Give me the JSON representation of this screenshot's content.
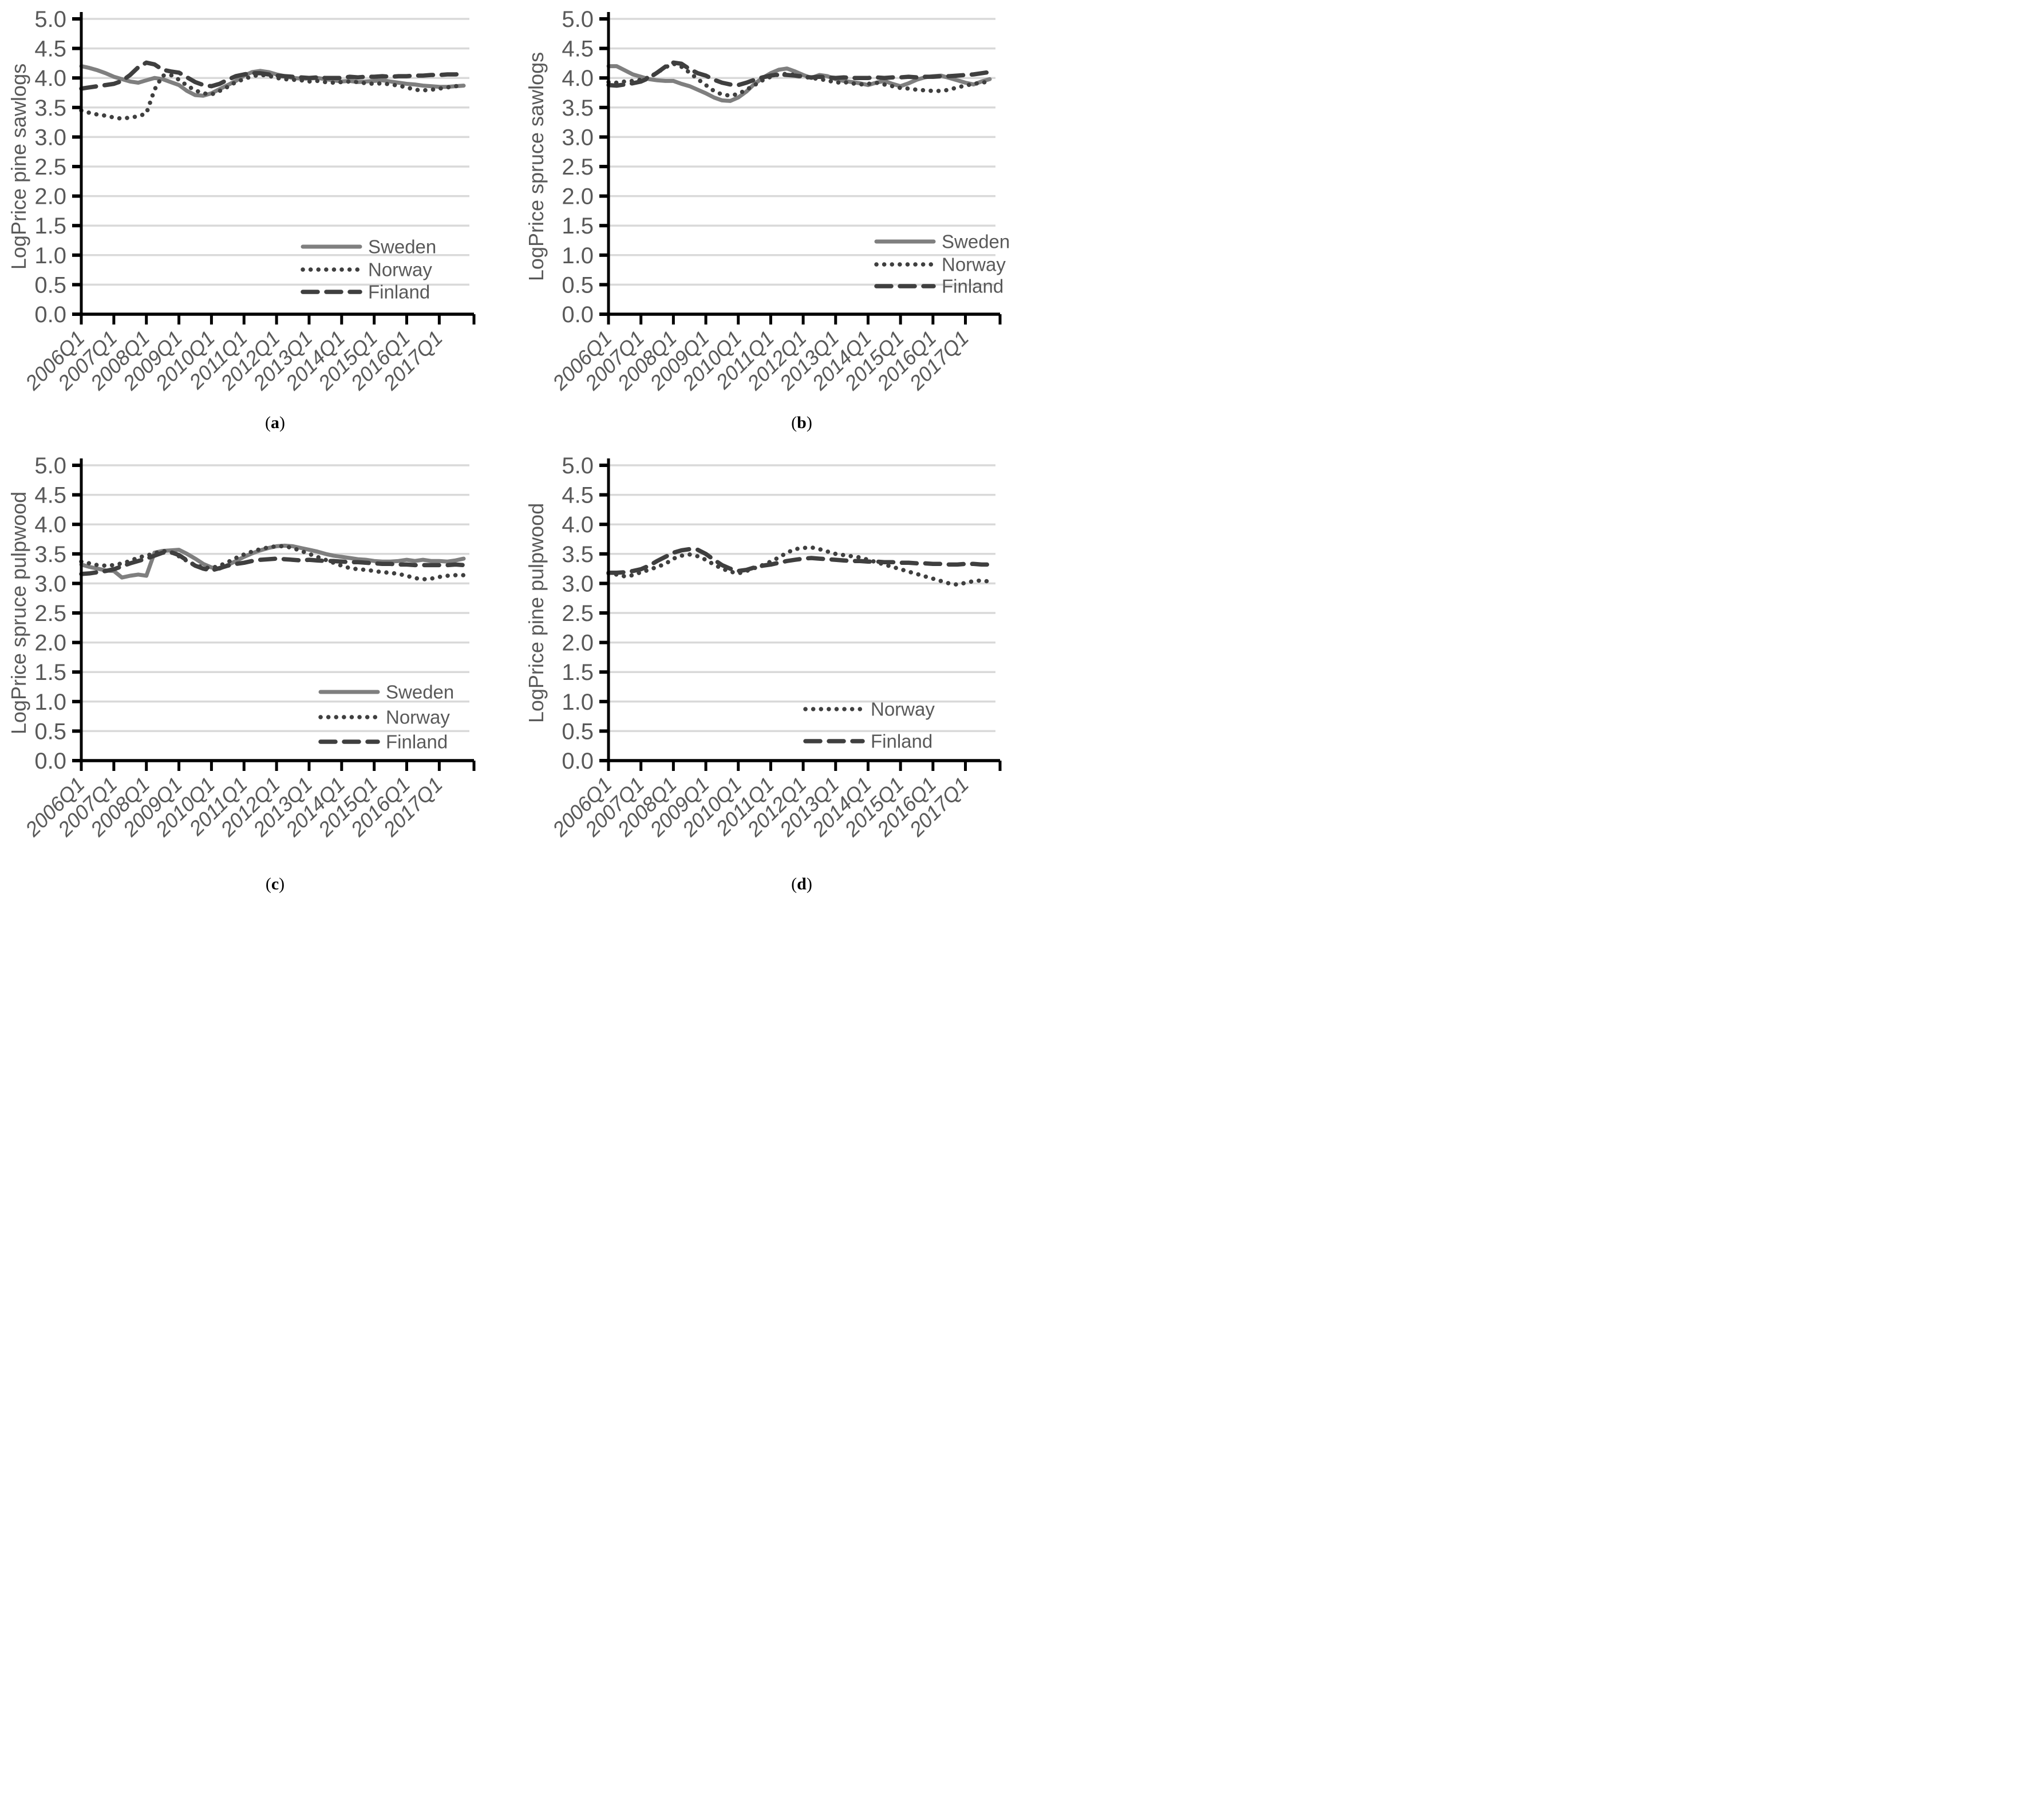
{
  "figure": {
    "captions": [
      {
        "prefix": "(",
        "letter": "a",
        "suffix": ")"
      },
      {
        "prefix": "(",
        "letter": "b",
        "suffix": ")"
      },
      {
        "prefix": "(",
        "letter": "c",
        "suffix": ")"
      },
      {
        "prefix": "(",
        "letter": "d",
        "suffix": ")"
      }
    ]
  },
  "styles": {
    "axis_color": "#000000",
    "grid_color": "#d9d9d9",
    "tick_label_color": "#595959",
    "axis_title_color": "#595959",
    "legend_text_color": "#595959",
    "sweden_color": "#7f7f7f",
    "norway_color": "#3f3f3f",
    "finland_color": "#3f3f3f"
  },
  "chart_data": [
    {
      "panel": "a",
      "type": "line",
      "ylabel": "LogPrice pine sawlogs",
      "caption": "(a)",
      "ylim": [
        0.0,
        5.0
      ],
      "ytick_step": 0.5,
      "ytick_labels": [
        "0.0",
        "0.5",
        "1.0",
        "1.5",
        "2.0",
        "2.5",
        "3.0",
        "3.5",
        "4.0",
        "4.5",
        "5.0"
      ],
      "x_tick_labels": [
        "2006Q1",
        "2007Q1",
        "2008Q1",
        "2009Q1",
        "2010Q1",
        "2011Q1",
        "2012Q1",
        "2013Q1",
        "2014Q1",
        "2015Q1",
        "2016Q1",
        "2017Q1"
      ],
      "x_frequency": "quarterly",
      "x_span": "2006Q1-2017Q4",
      "grid": "horizontal",
      "legend": {
        "position": "inside-lower-right",
        "entries": [
          "Sweden",
          "Norway",
          "Finland"
        ]
      },
      "series": [
        {
          "name": "Sweden",
          "line_style": "solid",
          "color": "#7f7f7f",
          "values": [
            4.2,
            4.17,
            4.13,
            4.08,
            4.02,
            3.98,
            3.94,
            3.92,
            3.96,
            4.0,
            3.98,
            3.93,
            3.88,
            3.78,
            3.71,
            3.7,
            3.74,
            3.81,
            3.88,
            3.95,
            4.04,
            4.1,
            4.12,
            4.1,
            4.06,
            4.03,
            4.0,
            3.99,
            3.99,
            4.0,
            3.98,
            3.96,
            3.94,
            3.95,
            3.93,
            3.94,
            3.95,
            3.96,
            3.94,
            3.92,
            3.9,
            3.89,
            3.87,
            3.86,
            3.85,
            3.85,
            3.86,
            3.87
          ]
        },
        {
          "name": "Norway",
          "line_style": "dotted",
          "color": "#3f3f3f",
          "values": [
            3.45,
            3.41,
            3.38,
            3.36,
            3.33,
            3.31,
            3.33,
            3.35,
            3.4,
            3.8,
            4.04,
            4.05,
            3.97,
            3.87,
            3.79,
            3.74,
            3.72,
            3.78,
            3.85,
            3.93,
            3.98,
            4.03,
            4.05,
            4.04,
            4.0,
            3.98,
            3.97,
            3.96,
            3.94,
            3.95,
            3.93,
            3.92,
            3.93,
            3.94,
            3.93,
            3.91,
            3.9,
            3.91,
            3.89,
            3.87,
            3.84,
            3.8,
            3.79,
            3.8,
            3.82,
            3.84,
            3.86,
            3.87
          ]
        },
        {
          "name": "Finland",
          "line_style": "dashed",
          "color": "#3f3f3f",
          "values": [
            3.82,
            3.84,
            3.86,
            3.88,
            3.9,
            3.95,
            4.05,
            4.18,
            4.26,
            4.23,
            4.14,
            4.11,
            4.09,
            4.01,
            3.93,
            3.88,
            3.86,
            3.9,
            3.97,
            4.03,
            4.06,
            4.08,
            4.08,
            4.06,
            4.04,
            4.03,
            4.02,
            4.01,
            4.0,
            4.01,
            4.0,
            4.0,
            4.0,
            4.02,
            4.01,
            4.02,
            4.02,
            4.03,
            4.02,
            4.03,
            4.03,
            4.04,
            4.04,
            4.05,
            4.05,
            4.06,
            4.06,
            4.07
          ]
        }
      ]
    },
    {
      "panel": "b",
      "type": "line",
      "ylabel": "LogPrice spruce sawlogs",
      "caption": "(b)",
      "ylim": [
        0.0,
        5.0
      ],
      "ytick_step": 0.5,
      "ytick_labels": [
        "0.0",
        "0.5",
        "1.0",
        "1.5",
        "2.0",
        "2.5",
        "3.0",
        "3.5",
        "4.0",
        "4.5",
        "5.0"
      ],
      "x_tick_labels": [
        "2006Q1",
        "2007Q1",
        "2008Q1",
        "2009Q1",
        "2010Q1",
        "2011Q1",
        "2012Q1",
        "2013Q1",
        "2014Q1",
        "2015Q1",
        "2016Q1",
        "2017Q1"
      ],
      "x_frequency": "quarterly",
      "x_span": "2006Q1-2017Q4",
      "grid": "horizontal",
      "legend": {
        "position": "inside-lower-right",
        "entries": [
          "Sweden",
          "Norway",
          "Finland"
        ]
      },
      "series": [
        {
          "name": "Sweden",
          "line_style": "solid",
          "color": "#7f7f7f",
          "values": [
            4.2,
            4.2,
            4.13,
            4.06,
            4.02,
            3.98,
            3.96,
            3.95,
            3.95,
            3.9,
            3.86,
            3.8,
            3.74,
            3.67,
            3.62,
            3.61,
            3.67,
            3.77,
            3.9,
            4.0,
            4.08,
            4.14,
            4.16,
            4.11,
            4.05,
            4.0,
            4.05,
            4.03,
            3.98,
            3.95,
            3.93,
            3.91,
            3.88,
            3.92,
            3.95,
            3.9,
            3.86,
            3.91,
            3.97,
            4.01,
            4.03,
            4.04,
            4.0,
            3.96,
            3.92,
            3.89,
            3.94,
            3.98
          ]
        },
        {
          "name": "Norway",
          "line_style": "dotted",
          "color": "#3f3f3f",
          "values": [
            3.93,
            3.92,
            3.94,
            3.95,
            3.97,
            4.01,
            4.09,
            4.18,
            4.24,
            4.19,
            4.09,
            3.98,
            3.88,
            3.78,
            3.72,
            3.7,
            3.73,
            3.8,
            3.88,
            3.96,
            4.02,
            4.06,
            4.07,
            4.05,
            4.02,
            4.0,
            3.98,
            3.96,
            3.92,
            3.93,
            3.91,
            3.89,
            3.9,
            3.92,
            3.89,
            3.86,
            3.83,
            3.82,
            3.8,
            3.79,
            3.78,
            3.78,
            3.8,
            3.84,
            3.87,
            3.9,
            3.92,
            3.94
          ]
        },
        {
          "name": "Finland",
          "line_style": "dashed",
          "color": "#3f3f3f",
          "values": [
            3.88,
            3.87,
            3.89,
            3.91,
            3.94,
            4.0,
            4.09,
            4.19,
            4.26,
            4.24,
            4.15,
            4.08,
            4.04,
            3.97,
            3.92,
            3.89,
            3.88,
            3.92,
            3.97,
            4.01,
            4.04,
            4.06,
            4.05,
            4.04,
            4.02,
            4.01,
            4.02,
            4.01,
            4.0,
            4.01,
            4.0,
            4.0,
            4.0,
            4.01,
            4.0,
            4.01,
            4.01,
            4.02,
            4.01,
            4.02,
            4.02,
            4.03,
            4.03,
            4.04,
            4.05,
            4.06,
            4.08,
            4.1
          ]
        }
      ]
    },
    {
      "panel": "c",
      "type": "line",
      "ylabel": "LogPrice spruce pulpwood",
      "caption": "(c)",
      "ylim": [
        0.0,
        5.0
      ],
      "ytick_step": 0.5,
      "ytick_labels": [
        "0.0",
        "0.5",
        "1.0",
        "1.5",
        "2.0",
        "2.5",
        "3.0",
        "3.5",
        "4.0",
        "4.5",
        "5.0"
      ],
      "x_tick_labels": [
        "2006Q1",
        "2007Q1",
        "2008Q1",
        "2009Q1",
        "2010Q1",
        "2011Q1",
        "2012Q1",
        "2013Q1",
        "2014Q1",
        "2015Q1",
        "2016Q1",
        "2017Q1"
      ],
      "x_frequency": "quarterly",
      "x_span": "2006Q1-2017Q4",
      "grid": "horizontal",
      "legend": {
        "position": "inside-lower-right",
        "entries": [
          "Sweden",
          "Norway",
          "Finland"
        ]
      },
      "series": [
        {
          "name": "Sweden",
          "line_style": "solid",
          "color": "#7f7f7f",
          "values": [
            3.32,
            3.28,
            3.25,
            3.22,
            3.21,
            3.1,
            3.13,
            3.15,
            3.13,
            3.52,
            3.55,
            3.56,
            3.57,
            3.5,
            3.42,
            3.33,
            3.27,
            3.25,
            3.31,
            3.38,
            3.45,
            3.51,
            3.56,
            3.6,
            3.63,
            3.64,
            3.63,
            3.6,
            3.57,
            3.54,
            3.5,
            3.47,
            3.45,
            3.43,
            3.41,
            3.4,
            3.38,
            3.37,
            3.37,
            3.38,
            3.4,
            3.38,
            3.4,
            3.38,
            3.38,
            3.37,
            3.39,
            3.42
          ]
        },
        {
          "name": "Norway",
          "line_style": "dotted",
          "color": "#3f3f3f",
          "values": [
            3.37,
            3.34,
            3.31,
            3.3,
            3.31,
            3.34,
            3.38,
            3.44,
            3.47,
            3.51,
            3.55,
            3.53,
            3.46,
            3.38,
            3.31,
            3.27,
            3.26,
            3.3,
            3.36,
            3.43,
            3.49,
            3.54,
            3.58,
            3.61,
            3.63,
            3.63,
            3.6,
            3.55,
            3.5,
            3.45,
            3.4,
            3.35,
            3.3,
            3.26,
            3.24,
            3.23,
            3.21,
            3.19,
            3.18,
            3.16,
            3.13,
            3.09,
            3.07,
            3.08,
            3.11,
            3.13,
            3.14,
            3.14
          ]
        },
        {
          "name": "Finland",
          "line_style": "dashed",
          "color": "#3f3f3f",
          "values": [
            3.16,
            3.17,
            3.19,
            3.21,
            3.24,
            3.29,
            3.34,
            3.38,
            3.42,
            3.47,
            3.52,
            3.53,
            3.48,
            3.39,
            3.3,
            3.25,
            3.22,
            3.26,
            3.3,
            3.33,
            3.35,
            3.38,
            3.4,
            3.41,
            3.42,
            3.41,
            3.4,
            3.39,
            3.4,
            3.39,
            3.38,
            3.38,
            3.37,
            3.36,
            3.36,
            3.35,
            3.34,
            3.33,
            3.33,
            3.32,
            3.32,
            3.31,
            3.31,
            3.31,
            3.31,
            3.31,
            3.32,
            3.31
          ]
        }
      ]
    },
    {
      "panel": "d",
      "type": "line",
      "ylabel": "LogPrice pine pulpwood",
      "caption": "(d)",
      "ylim": [
        0.0,
        5.0
      ],
      "ytick_step": 0.5,
      "ytick_labels": [
        "0.0",
        "0.5",
        "1.0",
        "1.5",
        "2.0",
        "2.5",
        "3.0",
        "3.5",
        "4.0",
        "4.5",
        "5.0"
      ],
      "x_tick_labels": [
        "2006Q1",
        "2007Q1",
        "2008Q1",
        "2009Q1",
        "2010Q1",
        "2011Q1",
        "2012Q1",
        "2013Q1",
        "2014Q1",
        "2015Q1",
        "2016Q1",
        "2017Q1"
      ],
      "x_frequency": "quarterly",
      "x_span": "2006Q1-2017Q4",
      "grid": "horizontal",
      "legend": {
        "position": "inside-lower-right",
        "entries": [
          "Norway",
          "Finland"
        ]
      },
      "series": [
        {
          "name": "Norway",
          "line_style": "dotted",
          "color": "#3f3f3f",
          "values": [
            3.17,
            3.15,
            3.12,
            3.14,
            3.19,
            3.23,
            3.28,
            3.33,
            3.42,
            3.47,
            3.49,
            3.46,
            3.4,
            3.32,
            3.25,
            3.2,
            3.17,
            3.21,
            3.26,
            3.31,
            3.37,
            3.44,
            3.52,
            3.58,
            3.6,
            3.61,
            3.58,
            3.54,
            3.5,
            3.48,
            3.46,
            3.44,
            3.4,
            3.36,
            3.32,
            3.28,
            3.24,
            3.2,
            3.16,
            3.12,
            3.08,
            3.04,
            3.0,
            2.98,
            3.01,
            3.04,
            3.05,
            3.03
          ]
        },
        {
          "name": "Finland",
          "line_style": "dashed",
          "color": "#3f3f3f",
          "values": [
            3.18,
            3.18,
            3.19,
            3.21,
            3.24,
            3.3,
            3.38,
            3.45,
            3.52,
            3.56,
            3.58,
            3.57,
            3.5,
            3.4,
            3.31,
            3.25,
            3.21,
            3.23,
            3.27,
            3.3,
            3.32,
            3.35,
            3.38,
            3.4,
            3.42,
            3.43,
            3.42,
            3.41,
            3.4,
            3.39,
            3.38,
            3.38,
            3.37,
            3.37,
            3.36,
            3.36,
            3.35,
            3.35,
            3.34,
            3.34,
            3.33,
            3.33,
            3.32,
            3.32,
            3.33,
            3.33,
            3.32,
            3.32
          ]
        }
      ]
    }
  ]
}
